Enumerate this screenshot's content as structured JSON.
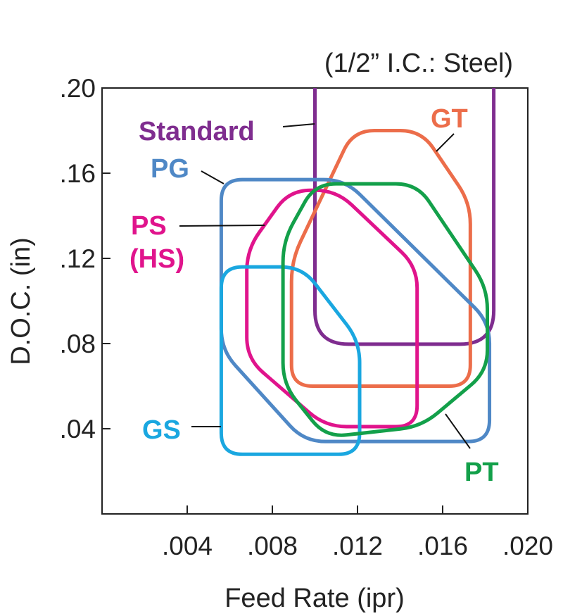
{
  "chart_data": {
    "type": "area",
    "title": "(1/2” I.C.: Steel)",
    "xlabel": "Feed Rate (ipr)",
    "ylabel": "D.O.C. (in)",
    "xlim": [
      0,
      0.02
    ],
    "ylim": [
      0,
      0.2
    ],
    "xticks": [
      ".004",
      ".008",
      ".012",
      ".016",
      ".020"
    ],
    "xtick_values": [
      0.004,
      0.008,
      0.012,
      0.016,
      0.02
    ],
    "yticks": [
      ".04",
      ".08",
      ".12",
      ".16",
      ".20"
    ],
    "ytick_values": [
      0.04,
      0.08,
      0.12,
      0.16,
      0.2
    ],
    "grid": false,
    "series": [
      {
        "name": "Standard",
        "color": "#7f2d8f",
        "closed": false,
        "points": [
          [
            0.01,
            0.2
          ],
          [
            0.01,
            0.0797
          ],
          [
            0.0184,
            0.0797
          ],
          [
            0.0184,
            0.2
          ]
        ]
      },
      {
        "name": "GT",
        "color": "#ec6d4a",
        "closed": true,
        "points": [
          [
            0.0089,
            0.06
          ],
          [
            0.0089,
            0.119
          ],
          [
            0.0118,
            0.18
          ],
          [
            0.015,
            0.18
          ],
          [
            0.0173,
            0.146
          ],
          [
            0.0173,
            0.06
          ]
        ]
      },
      {
        "name": "PG",
        "color": "#4f88c6",
        "closed": true,
        "points": [
          [
            0.0056,
            0.157
          ],
          [
            0.0114,
            0.157
          ],
          [
            0.0182,
            0.09
          ],
          [
            0.0182,
            0.034
          ],
          [
            0.0095,
            0.034
          ],
          [
            0.0056,
            0.077
          ]
        ]
      },
      {
        "name": "PS (HS)",
        "color": "#e0148c",
        "closed": true,
        "points": [
          [
            0.0068,
            0.073
          ],
          [
            0.0068,
            0.124
          ],
          [
            0.0088,
            0.152
          ],
          [
            0.011,
            0.152
          ],
          [
            0.0148,
            0.116
          ],
          [
            0.0148,
            0.041
          ],
          [
            0.0105,
            0.041
          ]
        ]
      },
      {
        "name": "GS",
        "color": "#1aa7e0",
        "closed": true,
        "points": [
          [
            0.0056,
            0.028
          ],
          [
            0.0056,
            0.116
          ],
          [
            0.0094,
            0.116
          ],
          [
            0.0121,
            0.081
          ],
          [
            0.0121,
            0.028
          ]
        ]
      },
      {
        "name": "PT",
        "color": "#13a04a",
        "closed": true,
        "points": [
          [
            0.0085,
            0.061
          ],
          [
            0.0085,
            0.128
          ],
          [
            0.01,
            0.155
          ],
          [
            0.0148,
            0.155
          ],
          [
            0.0181,
            0.106
          ],
          [
            0.0181,
            0.067
          ],
          [
            0.015,
            0.041
          ],
          [
            0.0105,
            0.036
          ]
        ]
      }
    ],
    "annotations": [
      {
        "text": "Standard",
        "series": "Standard",
        "color": "#7f2d8f"
      },
      {
        "text": "GT",
        "series": "GT",
        "color": "#ec6d4a"
      },
      {
        "text": "PG",
        "series": "PG",
        "color": "#4f88c6"
      },
      {
        "text": "PS",
        "series": "PS (HS)",
        "color": "#e0148c"
      },
      {
        "text": "(HS)",
        "series": "PS (HS)",
        "color": "#e0148c"
      },
      {
        "text": "GS",
        "series": "GS",
        "color": "#1aa7e0"
      },
      {
        "text": "PT",
        "series": "PT",
        "color": "#13a04a"
      }
    ]
  }
}
